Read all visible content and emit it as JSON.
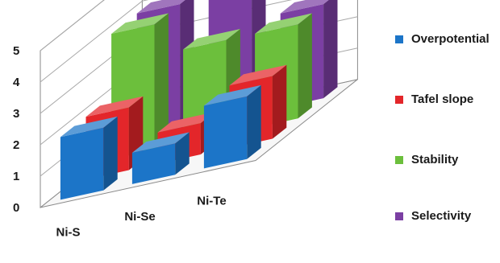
{
  "chart_data": {
    "type": "bar",
    "categories": [
      "Ni-S",
      "Ni-Se",
      "Ni-Te"
    ],
    "series": [
      {
        "name": "Overpotential",
        "values": [
          2.0,
          1.0,
          2.0
        ],
        "color": "#1c75c8"
      },
      {
        "name": "Tafel slope",
        "values": [
          2.0,
          1.0,
          2.0
        ],
        "color": "#e3262a"
      },
      {
        "name": "Stability",
        "values": [
          4.0,
          3.0,
          3.0
        ],
        "color": "#6cbf3c"
      },
      {
        "name": "Selectivity",
        "values": [
          4.0,
          4.0,
          3.0
        ],
        "color": "#7b3fa3"
      }
    ],
    "yticks": [
      "0",
      "1",
      "2",
      "3",
      "4",
      "5"
    ],
    "ylim": [
      0,
      5
    ],
    "grid": true,
    "legend_position": "right"
  }
}
